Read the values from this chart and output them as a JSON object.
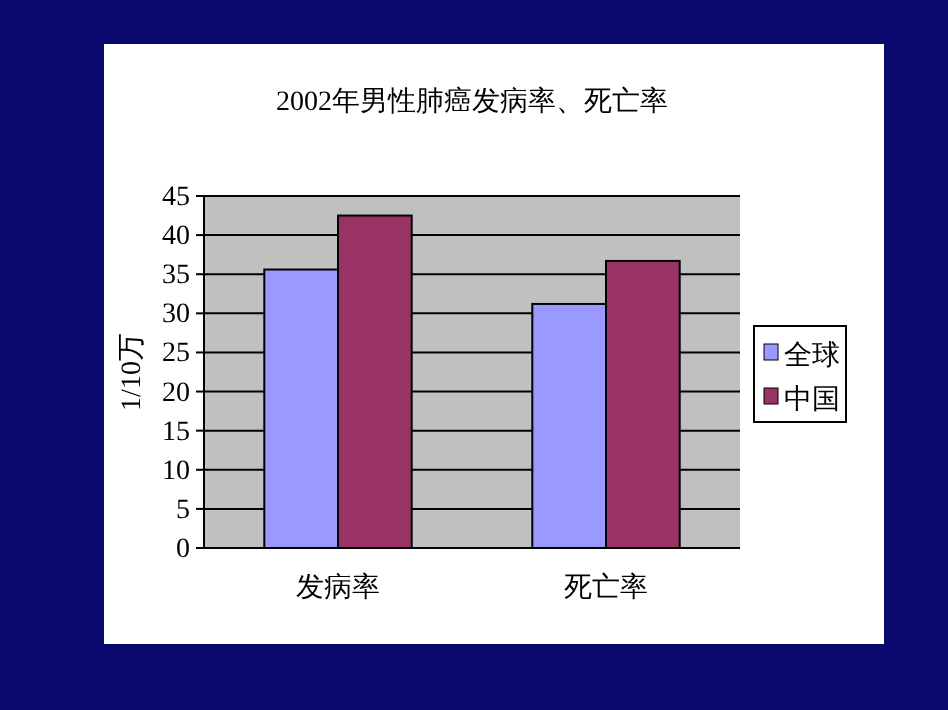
{
  "chart_data": {
    "type": "bar",
    "title": "2002年男性肺癌发病率、死亡率",
    "ylabel": "1/10万",
    "categories": [
      "发病率",
      "死亡率"
    ],
    "series": [
      {
        "name": "全球",
        "color": "#9999ff",
        "values": [
          35.6,
          31.2
        ]
      },
      {
        "name": "中国",
        "color": "#993366",
        "values": [
          42.5,
          36.7
        ]
      }
    ],
    "ylim": [
      0,
      45
    ],
    "yticks": [
      0,
      5,
      10,
      15,
      20,
      25,
      30,
      35,
      40,
      45
    ],
    "grid": "y",
    "legend": "right"
  }
}
